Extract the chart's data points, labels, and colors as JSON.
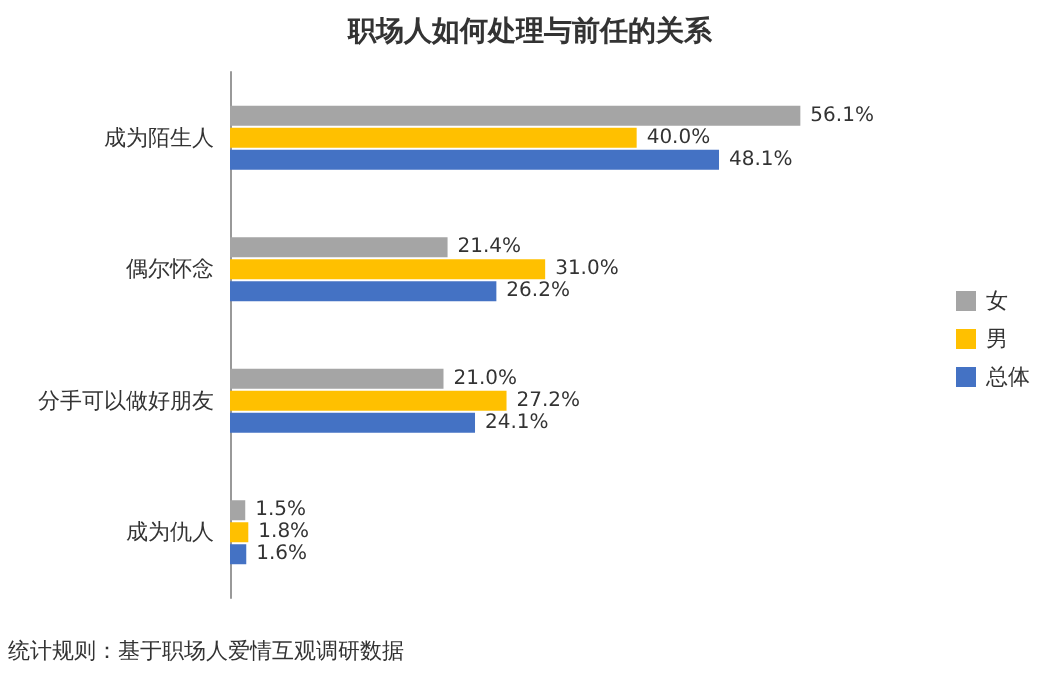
{
  "chart_data": {
    "type": "bar",
    "orientation": "horizontal",
    "title": "职场人如何处理与前任的关系",
    "categories": [
      "成为陌生人",
      "偶尔怀念",
      "分手可以做好朋友",
      "成为仇人"
    ],
    "series": [
      {
        "name": "女",
        "color": "#a5a5a5",
        "values": [
          56.1,
          21.4,
          21.0,
          1.5
        ],
        "value_labels": [
          "56.1%",
          "21.4%",
          "21.0%",
          "1.5%"
        ]
      },
      {
        "name": "男",
        "color": "#ffc000",
        "values": [
          40.0,
          31.0,
          27.2,
          1.8
        ],
        "value_labels": [
          "40.0%",
          "31.0%",
          "27.2%",
          "1.8%"
        ]
      },
      {
        "name": "总体",
        "color": "#4472c4",
        "values": [
          48.1,
          26.2,
          24.1,
          1.6
        ],
        "value_labels": [
          "48.1%",
          "26.2%",
          "24.1%",
          "1.6%"
        ]
      }
    ],
    "legend": "right",
    "annotations": [
      "统计规则：基于职场人爱情互观调研数据"
    ]
  }
}
